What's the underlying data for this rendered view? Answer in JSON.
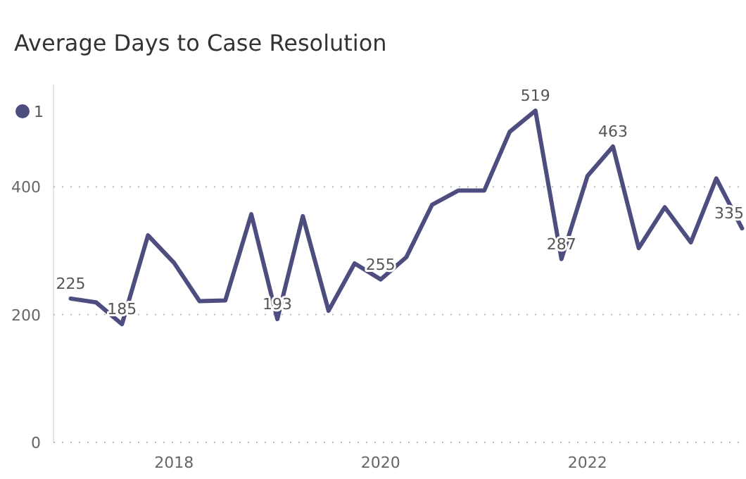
{
  "chart_data": {
    "type": "line",
    "title": "Average Days to Case Resolution",
    "x": [
      "2017-01",
      "2017-04",
      "2017-07",
      "2017-10",
      "2018-01",
      "2018-04",
      "2018-07",
      "2018-10",
      "2019-01",
      "2019-04",
      "2019-07",
      "2019-10",
      "2020-01",
      "2020-04",
      "2020-07",
      "2020-10",
      "2021-01",
      "2021-04",
      "2021-07",
      "2021-10",
      "2022-01",
      "2022-04",
      "2022-07",
      "2022-10",
      "2023-01",
      "2023-04",
      "2023-07"
    ],
    "series": [
      {
        "name": "1",
        "color": "#4e4d7f",
        "values": [
          225,
          219,
          185,
          324,
          281,
          221,
          222,
          357,
          193,
          354,
          206,
          280,
          255,
          290,
          372,
          394,
          394,
          486,
          519,
          287,
          417,
          463,
          304,
          368,
          313,
          413,
          335
        ],
        "value_labels": [
          "225",
          null,
          "185",
          null,
          null,
          null,
          null,
          null,
          "193",
          null,
          null,
          null,
          "255",
          null,
          null,
          null,
          null,
          null,
          "519",
          "287",
          null,
          "463",
          null,
          null,
          null,
          null,
          "335"
        ]
      }
    ],
    "xlim": [
      "2016-11-01",
      "2023-07-15"
    ],
    "xticks": [
      "2018",
      "2020",
      "2022"
    ],
    "ylim": [
      0,
      560
    ],
    "yticks": [
      0,
      200,
      400
    ],
    "grid": "y",
    "legend": "top left",
    "marker": "none",
    "line_style": "solid"
  }
}
